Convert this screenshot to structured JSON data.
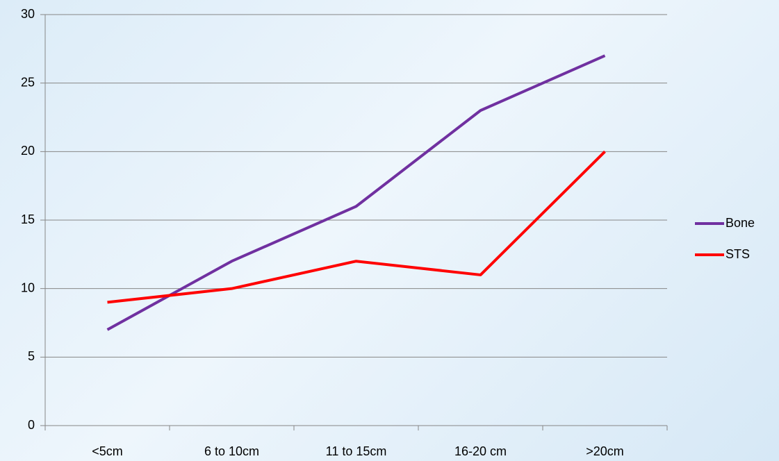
{
  "chart_data": {
    "type": "line",
    "categories": [
      "<5cm",
      "6 to 10cm",
      "11 to 15cm",
      "16-20 cm",
      ">20cm"
    ],
    "series": [
      {
        "name": "Bone",
        "color": "#7030a0",
        "values": [
          7,
          12,
          16,
          23,
          27
        ]
      },
      {
        "name": "STS",
        "color": "#ff0000",
        "values": [
          9,
          10,
          12,
          11,
          20
        ]
      }
    ],
    "ylim": [
      0,
      30
    ],
    "yticks": [
      0,
      5,
      10,
      15,
      20,
      25,
      30
    ],
    "grid": true,
    "legend": "right"
  }
}
